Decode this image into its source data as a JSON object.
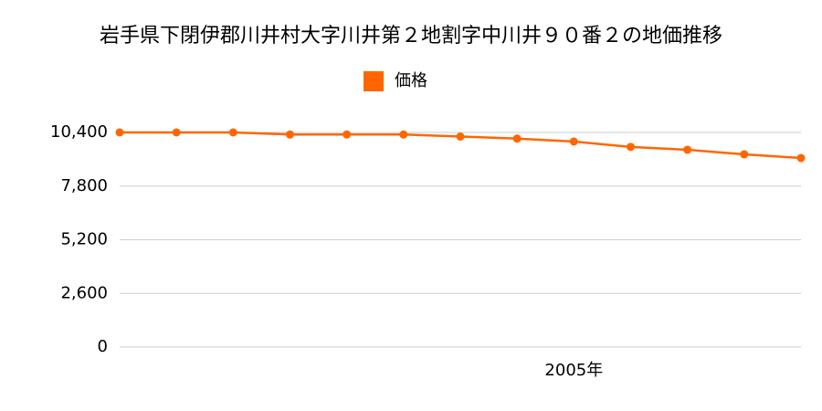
{
  "chart_data": {
    "type": "line",
    "title": "岩手県下閉伊郡川井村大字川井第２地割字中川井９０番２の地価推移",
    "categories": [
      null,
      null,
      null,
      null,
      null,
      null,
      null,
      null,
      "2005年",
      null,
      null,
      null,
      null
    ],
    "series": [
      {
        "name": "価格",
        "color": "#ff6600",
        "values": [
          10400,
          10400,
          10400,
          10300,
          10300,
          10300,
          10200,
          10100,
          9960,
          9700,
          9560,
          9340,
          9160
        ]
      }
    ],
    "ylim": [
      0,
      10400
    ],
    "yticks": [
      0,
      {
        "value": 2600,
        "label": "2,600"
      },
      {
        "value": 5200,
        "label": "5,200"
      },
      {
        "value": 7800,
        "label": "7,800"
      },
      {
        "value": 10400,
        "label": "10,400"
      }
    ],
    "grid": true,
    "legend": "top"
  }
}
